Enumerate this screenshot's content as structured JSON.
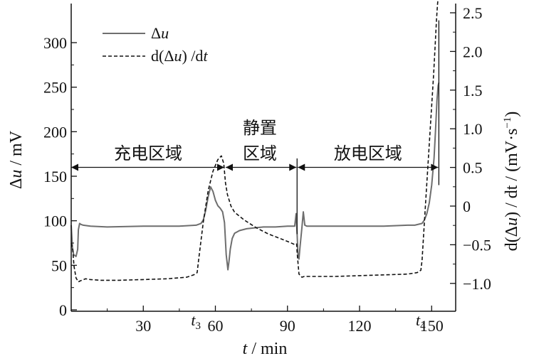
{
  "chart_data": {
    "type": "line",
    "xlabel": {
      "var": "t",
      "rest": " / min"
    },
    "ylabel_left": {
      "pre": "Δ",
      "var": "u",
      "rest": " / mV"
    },
    "ylabel_right": {
      "part1": "d(Δ",
      "var": "u",
      "part2": ") / dt / (mV·s",
      "sup": "−1",
      "part3": ")"
    },
    "xlim": [
      0,
      160
    ],
    "ylim_left": [
      0,
      300
    ],
    "ylim_right": [
      -1.0,
      2.5
    ],
    "x_ticks": [
      {
        "value": 30,
        "label": "30"
      },
      {
        "value": 60,
        "label": "60"
      },
      {
        "value": 90,
        "label": "90"
      },
      {
        "value": 120,
        "label": "120"
      },
      {
        "value": 150,
        "label": "150"
      }
    ],
    "special_x_ticks": [
      {
        "value": 52.5,
        "main": "t",
        "sub": "3"
      },
      {
        "value": 146,
        "main": "t",
        "sub": "4"
      }
    ],
    "y_left_ticks": [
      0,
      50,
      100,
      150,
      200,
      250,
      300
    ],
    "y_right_ticks": [
      {
        "value": -1.0,
        "label": "−1.0"
      },
      {
        "value": -0.5,
        "label": "−0.5"
      },
      {
        "value": 0,
        "label": "0"
      },
      {
        "value": 0.5,
        "label": "0.5"
      },
      {
        "value": 1.0,
        "label": "1.0"
      },
      {
        "value": 1.5,
        "label": "1.5"
      },
      {
        "value": 2.0,
        "label": "2.0"
      },
      {
        "value": 2.5,
        "label": "2.5"
      }
    ],
    "legend": {
      "position": "top-left",
      "entries": [
        {
          "id": "du",
          "pre": "Δ",
          "var": "u",
          "rest": ""
        },
        {
          "id": "ddu",
          "pre": "d(Δ",
          "var": "u",
          "rest": ") /d",
          "var2": "t"
        }
      ]
    },
    "regions": [
      {
        "label": "充电区域",
        "x_start": 0,
        "x_end": 64,
        "label_x": 32
      },
      {
        "label_line1": "静置",
        "label_line2": "区域",
        "x_start": 64,
        "x_end": 94,
        "label_x": 78.5
      },
      {
        "label": "放电区域",
        "x_start": 94,
        "x_end": 153,
        "label_x": 123.5
      }
    ],
    "region_arrow_y": 160,
    "region_markers": [
      {
        "x": 94,
        "y_top": 170,
        "y_bottom": 85
      },
      {
        "x": 153,
        "y_top": 325,
        "y_bottom": 140
      }
    ],
    "series": [
      {
        "name": "Δu",
        "axis": "left",
        "style": "solid",
        "color": "#6e6e6e",
        "x": [
          0,
          0.5,
          1,
          2,
          2.7,
          3,
          3.5,
          4,
          5,
          8,
          15,
          30,
          45,
          52,
          54,
          55,
          56,
          57,
          58,
          59,
          60,
          61,
          62,
          63,
          63.8,
          64.5,
          65.2,
          65.7,
          66.2,
          67,
          68,
          70,
          73,
          76,
          80,
          85,
          90,
          93,
          93.6,
          94,
          94.4,
          94.8,
          95.2,
          96,
          96.6,
          97.2,
          98,
          100,
          110,
          120,
          130,
          140,
          143,
          146,
          147,
          148,
          149,
          150,
          151,
          151.6,
          152.2,
          152.7,
          153
        ],
        "y": [
          95,
          70,
          62,
          60,
          68,
          90,
          97,
          96,
          95,
          94,
          93,
          94,
          94,
          95,
          97,
          101,
          112,
          127,
          138,
          133,
          123,
          117,
          114,
          110,
          98,
          62,
          45,
          55,
          68,
          80,
          86,
          89,
          91,
          92,
          93,
          93,
          94,
          94,
          108,
          85,
          60,
          57,
          70,
          92,
          110,
          95,
          94,
          94,
          94,
          94,
          94,
          95,
          95,
          97,
          101,
          108,
          120,
          140,
          170,
          200,
          235,
          252,
          255
        ]
      },
      {
        "name": "d(Δu) /dt",
        "axis": "right",
        "style": "dashed",
        "color": "#111111",
        "x": [
          0,
          0.6,
          1.2,
          2,
          3,
          3.6,
          4.4,
          6,
          8,
          12,
          20,
          30,
          40,
          48,
          51,
          52.4,
          53,
          55,
          57,
          59,
          61,
          62.5,
          63.5,
          64.2,
          65,
          66.5,
          68,
          72,
          77,
          82,
          87,
          91,
          93.2,
          93.8,
          94,
          94.8,
          96,
          97,
          100,
          110,
          120,
          130,
          140,
          144,
          145.5,
          146,
          147,
          148,
          149,
          150,
          150.8,
          151.5,
          152,
          152.4,
          152.7
        ],
        "y": [
          -0.48,
          -0.55,
          -0.78,
          -0.93,
          -0.98,
          -0.97,
          -0.96,
          -0.94,
          -0.95,
          -0.96,
          -0.96,
          -0.95,
          -0.94,
          -0.92,
          -0.89,
          -0.86,
          -0.7,
          -0.2,
          0.2,
          0.45,
          0.6,
          0.65,
          0.55,
          0.3,
          0.15,
          0.0,
          -0.08,
          -0.18,
          -0.28,
          -0.36,
          -0.42,
          -0.47,
          -0.5,
          -0.49,
          -0.6,
          -0.88,
          -0.92,
          -0.91,
          -0.91,
          -0.91,
          -0.9,
          -0.89,
          -0.88,
          -0.86,
          -0.83,
          -0.7,
          -0.2,
          0.3,
          0.8,
          1.3,
          1.7,
          2.1,
          2.4,
          2.6,
          2.7
        ]
      }
    ]
  }
}
